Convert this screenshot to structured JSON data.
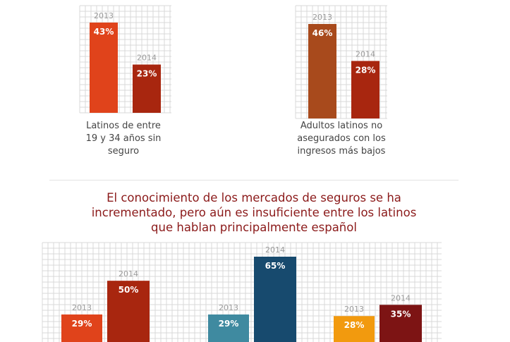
{
  "top_captions": {
    "left": [
      "Latinos de entre",
      "19 y 34 años sin",
      "seguro"
    ],
    "right": [
      "Adultos latinos no",
      "asegurados con los",
      "ingresos más bajos"
    ]
  },
  "headline": [
    "El conocimiento de los mercados de seguros se ha",
    "incrementado, pero aún es insuficiente entre los latinos",
    "que hablan principalmente español"
  ],
  "chart_data": [
    {
      "type": "bar",
      "title": "",
      "categories": [
        "2013",
        "2014"
      ],
      "values": [
        43,
        23
      ],
      "value_labels": [
        "43%",
        "23%"
      ],
      "ylim": [
        0,
        50
      ],
      "grid": true,
      "colors": [
        "#e0431b",
        "#a8260f"
      ],
      "caption": "Latinos de entre 19 y 34 años sin seguro"
    },
    {
      "type": "bar",
      "title": "",
      "categories": [
        "2013",
        "2014"
      ],
      "values": [
        46,
        28
      ],
      "value_labels": [
        "46%",
        "28%"
      ],
      "ylim": [
        0,
        50
      ],
      "grid": true,
      "colors": [
        "#a84a1c",
        "#a8260f"
      ],
      "caption": "Adultos latinos no asegurados con los ingresos más bajos"
    },
    {
      "type": "bar",
      "title": "",
      "grid": true,
      "groups": [
        {
          "categories": [
            "2013",
            "2014"
          ],
          "values": [
            29,
            50
          ],
          "value_labels": [
            "29%",
            "50%"
          ],
          "colors": [
            "#e0431b",
            "#a8260f"
          ]
        },
        {
          "categories": [
            "2013",
            "2014"
          ],
          "values": [
            29,
            65
          ],
          "value_labels": [
            "29%",
            "65%"
          ],
          "colors": [
            "#3f8aa0",
            "#174a6e"
          ]
        },
        {
          "categories": [
            "2013",
            "2014"
          ],
          "values": [
            28,
            35
          ],
          "value_labels": [
            "28%",
            "35%"
          ],
          "colors": [
            "#f29a0e",
            "#7d1414"
          ]
        }
      ]
    }
  ]
}
